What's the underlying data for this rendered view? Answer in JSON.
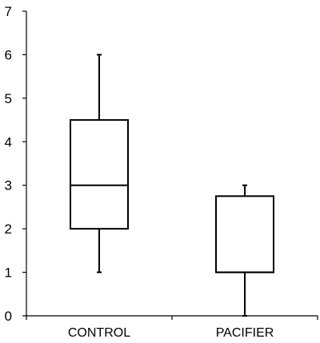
{
  "chart_data": {
    "type": "box",
    "title": "",
    "xlabel": "",
    "ylabel": "",
    "ylim": [
      0,
      7
    ],
    "yticks": [
      0,
      1,
      2,
      3,
      4,
      5,
      6,
      7
    ],
    "grid": false,
    "categories": [
      "CONTROL",
      "PACIFIER"
    ],
    "boxes": [
      {
        "category": "CONTROL",
        "min": 1,
        "q1": 2,
        "median": 3,
        "q3": 4.5,
        "max": 6
      },
      {
        "category": "PACIFIER",
        "min": 0,
        "q1": 1,
        "median": 1,
        "q3": 2.75,
        "max": 3
      }
    ]
  }
}
